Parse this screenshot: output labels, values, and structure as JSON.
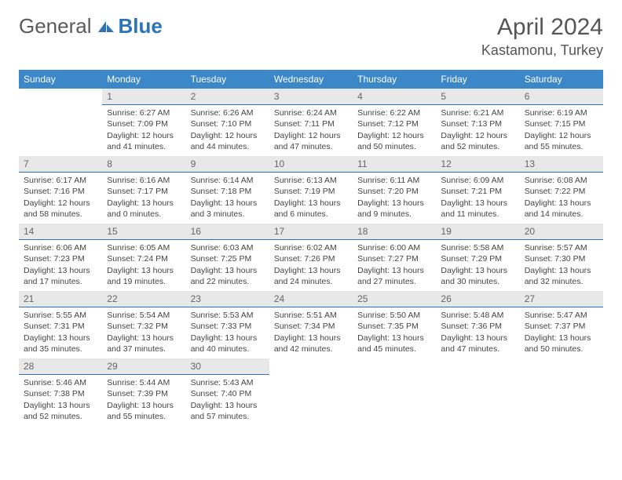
{
  "brand": {
    "general": "General",
    "blue": "Blue"
  },
  "title": {
    "month": "April 2024",
    "location": "Kastamonu, Turkey"
  },
  "headers": [
    "Sunday",
    "Monday",
    "Tuesday",
    "Wednesday",
    "Thursday",
    "Friday",
    "Saturday"
  ],
  "colors": {
    "header_bg": "#3b87c8",
    "daynum_bg": "#e8e8e8",
    "daynum_border": "#2b74b8",
    "brand_blue": "#2b74b8"
  },
  "cells": [
    null,
    {
      "n": "1",
      "sr": "6:27 AM",
      "ss": "7:09 PM",
      "dl": "12 hours and 41 minutes."
    },
    {
      "n": "2",
      "sr": "6:26 AM",
      "ss": "7:10 PM",
      "dl": "12 hours and 44 minutes."
    },
    {
      "n": "3",
      "sr": "6:24 AM",
      "ss": "7:11 PM",
      "dl": "12 hours and 47 minutes."
    },
    {
      "n": "4",
      "sr": "6:22 AM",
      "ss": "7:12 PM",
      "dl": "12 hours and 50 minutes."
    },
    {
      "n": "5",
      "sr": "6:21 AM",
      "ss": "7:13 PM",
      "dl": "12 hours and 52 minutes."
    },
    {
      "n": "6",
      "sr": "6:19 AM",
      "ss": "7:15 PM",
      "dl": "12 hours and 55 minutes."
    },
    {
      "n": "7",
      "sr": "6:17 AM",
      "ss": "7:16 PM",
      "dl": "12 hours and 58 minutes."
    },
    {
      "n": "8",
      "sr": "6:16 AM",
      "ss": "7:17 PM",
      "dl": "13 hours and 0 minutes."
    },
    {
      "n": "9",
      "sr": "6:14 AM",
      "ss": "7:18 PM",
      "dl": "13 hours and 3 minutes."
    },
    {
      "n": "10",
      "sr": "6:13 AM",
      "ss": "7:19 PM",
      "dl": "13 hours and 6 minutes."
    },
    {
      "n": "11",
      "sr": "6:11 AM",
      "ss": "7:20 PM",
      "dl": "13 hours and 9 minutes."
    },
    {
      "n": "12",
      "sr": "6:09 AM",
      "ss": "7:21 PM",
      "dl": "13 hours and 11 minutes."
    },
    {
      "n": "13",
      "sr": "6:08 AM",
      "ss": "7:22 PM",
      "dl": "13 hours and 14 minutes."
    },
    {
      "n": "14",
      "sr": "6:06 AM",
      "ss": "7:23 PM",
      "dl": "13 hours and 17 minutes."
    },
    {
      "n": "15",
      "sr": "6:05 AM",
      "ss": "7:24 PM",
      "dl": "13 hours and 19 minutes."
    },
    {
      "n": "16",
      "sr": "6:03 AM",
      "ss": "7:25 PM",
      "dl": "13 hours and 22 minutes."
    },
    {
      "n": "17",
      "sr": "6:02 AM",
      "ss": "7:26 PM",
      "dl": "13 hours and 24 minutes."
    },
    {
      "n": "18",
      "sr": "6:00 AM",
      "ss": "7:27 PM",
      "dl": "13 hours and 27 minutes."
    },
    {
      "n": "19",
      "sr": "5:58 AM",
      "ss": "7:29 PM",
      "dl": "13 hours and 30 minutes."
    },
    {
      "n": "20",
      "sr": "5:57 AM",
      "ss": "7:30 PM",
      "dl": "13 hours and 32 minutes."
    },
    {
      "n": "21",
      "sr": "5:55 AM",
      "ss": "7:31 PM",
      "dl": "13 hours and 35 minutes."
    },
    {
      "n": "22",
      "sr": "5:54 AM",
      "ss": "7:32 PM",
      "dl": "13 hours and 37 minutes."
    },
    {
      "n": "23",
      "sr": "5:53 AM",
      "ss": "7:33 PM",
      "dl": "13 hours and 40 minutes."
    },
    {
      "n": "24",
      "sr": "5:51 AM",
      "ss": "7:34 PM",
      "dl": "13 hours and 42 minutes."
    },
    {
      "n": "25",
      "sr": "5:50 AM",
      "ss": "7:35 PM",
      "dl": "13 hours and 45 minutes."
    },
    {
      "n": "26",
      "sr": "5:48 AM",
      "ss": "7:36 PM",
      "dl": "13 hours and 47 minutes."
    },
    {
      "n": "27",
      "sr": "5:47 AM",
      "ss": "7:37 PM",
      "dl": "13 hours and 50 minutes."
    },
    {
      "n": "28",
      "sr": "5:46 AM",
      "ss": "7:38 PM",
      "dl": "13 hours and 52 minutes."
    },
    {
      "n": "29",
      "sr": "5:44 AM",
      "ss": "7:39 PM",
      "dl": "13 hours and 55 minutes."
    },
    {
      "n": "30",
      "sr": "5:43 AM",
      "ss": "7:40 PM",
      "dl": "13 hours and 57 minutes."
    },
    null,
    null,
    null,
    null
  ],
  "labels": {
    "sunrise": "Sunrise: ",
    "sunset": "Sunset: ",
    "daylight": "Daylight: "
  }
}
